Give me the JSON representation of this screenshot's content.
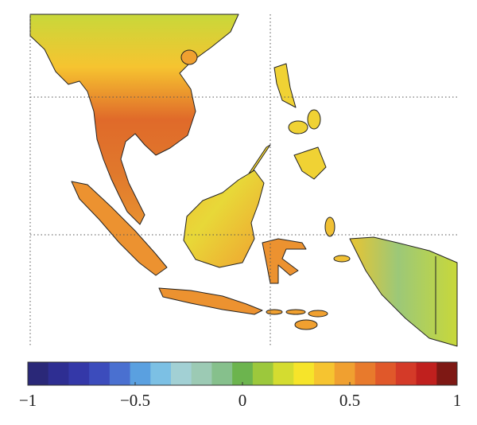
{
  "colorbar": {
    "range": [
      -1,
      1
    ],
    "ticks": [
      {
        "value": -1,
        "label": "−1"
      },
      {
        "value": -0.5,
        "label": "−0.5"
      },
      0,
      0.5,
      1
    ],
    "colors": [
      "#2a2878",
      "#2e2e92",
      "#3438a8",
      "#3c4cbc",
      "#4a70d0",
      "#5aa0e0",
      "#7cc0e4",
      "#a2d0d4",
      "#9ccab4",
      "#86c08c",
      "#6cb44e",
      "#9cc83c",
      "#d4dc30",
      "#f6e42a",
      "#f6c430",
      "#f0a030",
      "#e87a2c",
      "#e0582a",
      "#d43a28",
      "#c0201e",
      "#7e1814"
    ]
  }
}
